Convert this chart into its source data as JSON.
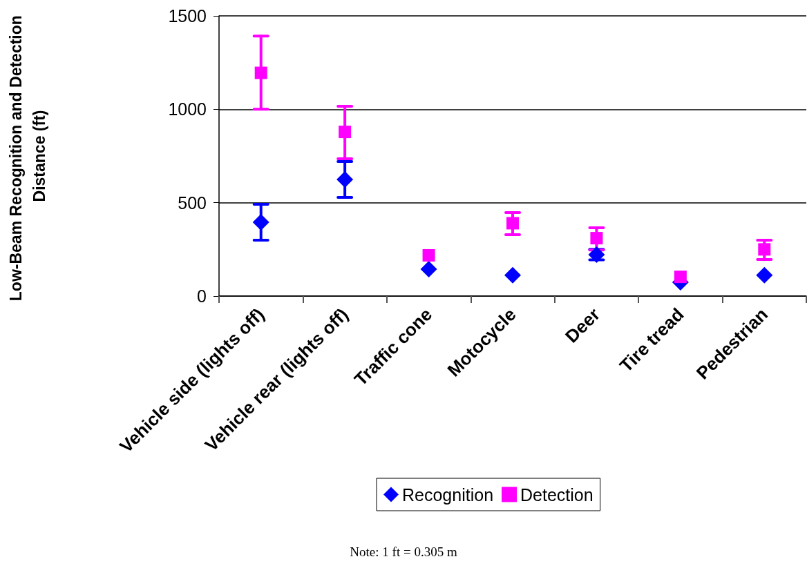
{
  "chart_data": {
    "type": "scatter",
    "ylabel": "Low-Beam Recognition and Detection Distance (ft)",
    "categories": [
      "Vehicle side (lights off)",
      "Vehicle rear (lights off)",
      "Traffic cone",
      "Motocycle",
      "Deer",
      "Tire tread",
      "Pedestrian"
    ],
    "series": [
      {
        "name": "Recognition",
        "color": "#0000ff",
        "marker": "diamond",
        "values": [
          395,
          624,
          144,
          112,
          222,
          74,
          112
        ],
        "errors": [
          [
            299,
            491
          ],
          [
            528,
            720
          ],
          null,
          null,
          [
            194,
            250
          ],
          null,
          null
        ]
      },
      {
        "name": "Detection",
        "color": "#ff00ff",
        "marker": "square",
        "values": [
          1195,
          879,
          218,
          390,
          310,
          103,
          250
        ],
        "errors": [
          [
            1000,
            1392
          ],
          [
            735,
            1016
          ],
          null,
          [
            329,
            447
          ],
          [
            247,
            366
          ],
          null,
          [
            196,
            299
          ]
        ]
      }
    ],
    "ylim": [
      0,
      1500
    ],
    "yticks": [
      0,
      500,
      1000,
      1500
    ],
    "grid": "y",
    "legend": "bottom",
    "annotations": [
      "Note: 1 ft = 0.305 m"
    ]
  }
}
